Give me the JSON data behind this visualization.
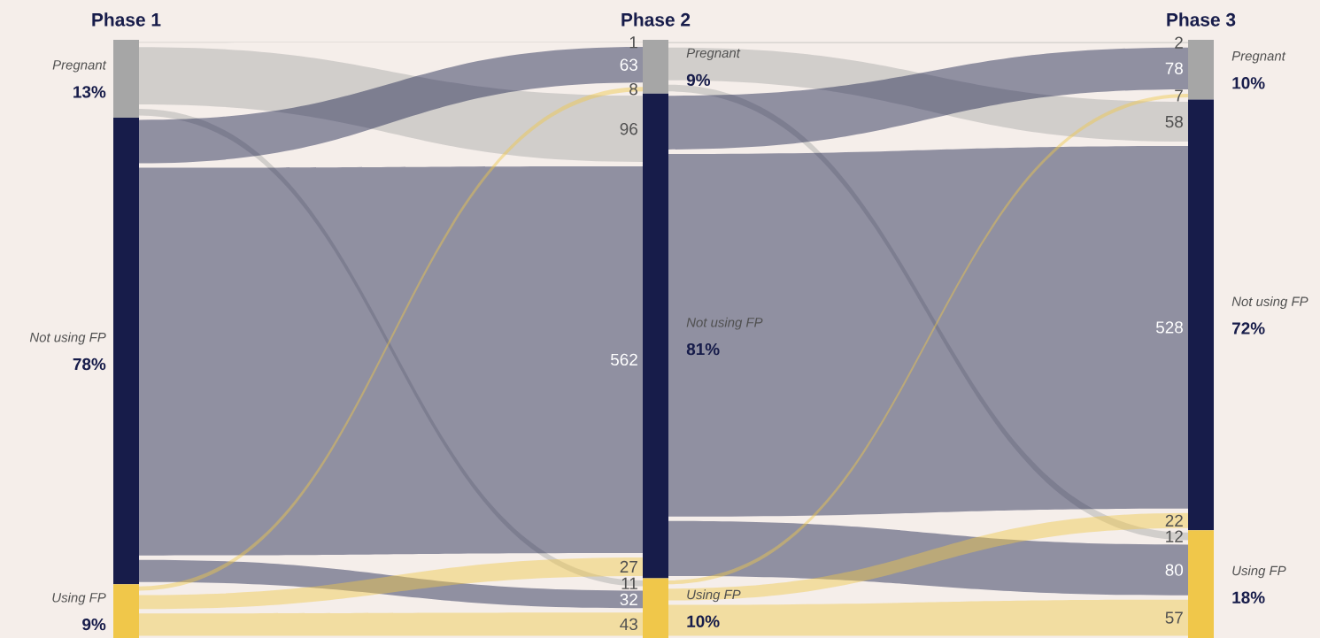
{
  "chart_data": {
    "type": "other",
    "categories": [
      "Phase 1",
      "Phase 2",
      "Phase 3"
    ],
    "series": [
      {
        "name": "Pregnant",
        "color": "#a6a6a6",
        "values": [
          13,
          9,
          10
        ],
        "value_labels": [
          "13%",
          "9%",
          "10%"
        ]
      },
      {
        "name": "Not using FP",
        "color": "#171c4a",
        "values": [
          78,
          81,
          72
        ],
        "value_labels": [
          "78%",
          "81%",
          "72%"
        ]
      },
      {
        "name": "Using FP",
        "color": "#f0c74a",
        "values": [
          9,
          10,
          18
        ],
        "value_labels": [
          "9%",
          "10%",
          "18%"
        ]
      }
    ],
    "annotations": [
      "1",
      "63",
      "8",
      "96",
      "562",
      "27",
      "11",
      "32",
      "43",
      "2",
      "78",
      "7",
      "58",
      "528",
      "22",
      "12",
      "80",
      "57"
    ]
  }
}
